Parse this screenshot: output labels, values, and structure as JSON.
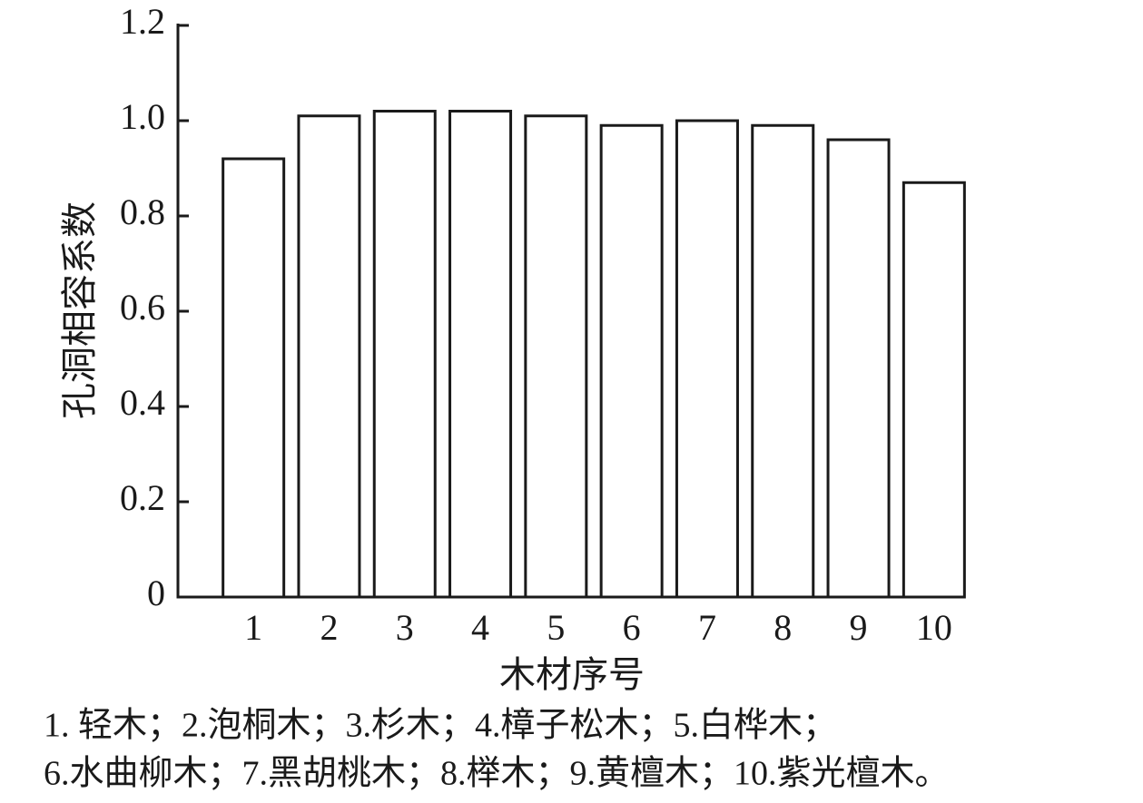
{
  "chart_data": {
    "type": "bar",
    "x_label": "木材序号",
    "y_label": "孔洞相容系数",
    "categories": [
      "1",
      "2",
      "3",
      "4",
      "5",
      "6",
      "7",
      "8",
      "9",
      "10"
    ],
    "values": [
      0.92,
      1.01,
      1.02,
      1.02,
      1.01,
      0.99,
      1.0,
      0.99,
      0.96,
      0.87
    ],
    "color": "#ffffff",
    "edge_color": "#1a1a1a",
    "ylim": [
      0,
      1.2
    ],
    "yticks": [
      0,
      0.2,
      0.4,
      0.6,
      0.8,
      {
        "value": 1,
        "label": "1.0"
      },
      1.2
    ],
    "grid": false,
    "notes": [
      "1. 轻木；2.泡桐木；3.杉木；4.樟子松木；5.白桦木；",
      "6.水曲柳木；7.黑胡桃木；8.榉木；9.黄檀木；10.紫光檀木。"
    ]
  }
}
